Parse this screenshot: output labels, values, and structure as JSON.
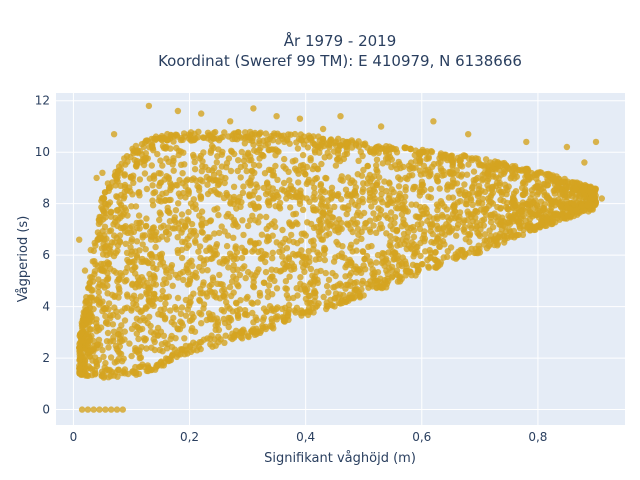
{
  "chart_data": {
    "type": "scatter",
    "title_lines": [
      "År 1979 - 2019",
      "Koordinat (Sweref 99 TM): E 410979, N 6138666"
    ],
    "xlabel": "Signifikant våghöjd (m)",
    "ylabel": "Vågperiod (s)",
    "xlim": [
      -0.03,
      0.95
    ],
    "ylim": [
      -0.6,
      12.3
    ],
    "xticks": [
      0,
      0.2,
      0.4,
      0.6,
      0.8
    ],
    "xtick_labels": [
      "0",
      "0,2",
      "0,4",
      "0,6",
      "0,8"
    ],
    "yticks": [
      0,
      2,
      4,
      6,
      8,
      10,
      12
    ],
    "ytick_labels": [
      "0",
      "2",
      "4",
      "6",
      "8",
      "10",
      "12"
    ],
    "grid": true,
    "colors": {
      "marker": "#D4A421",
      "background": "#E5ECF6",
      "grid": "#ffffff"
    },
    "envelope": {
      "x": [
        0.01,
        0.03,
        0.05,
        0.1,
        0.15,
        0.2,
        0.3,
        0.4,
        0.5,
        0.6,
        0.7,
        0.8,
        0.9
      ],
      "y_min": [
        1.3,
        1.3,
        1.2,
        1.3,
        1.6,
        2.2,
        2.8,
        3.6,
        4.4,
        5.3,
        6.1,
        7.0,
        7.8
      ],
      "y_max": [
        2.8,
        5.5,
        8.5,
        10.2,
        10.7,
        10.8,
        10.8,
        10.7,
        10.4,
        10.1,
        9.8,
        9.3,
        8.6
      ]
    },
    "outliers": [
      {
        "x": 0.13,
        "y": 11.8
      },
      {
        "x": 0.18,
        "y": 11.6
      },
      {
        "x": 0.22,
        "y": 11.5
      },
      {
        "x": 0.31,
        "y": 11.7
      },
      {
        "x": 0.35,
        "y": 11.4
      },
      {
        "x": 0.39,
        "y": 11.3
      },
      {
        "x": 0.27,
        "y": 11.2
      },
      {
        "x": 0.46,
        "y": 11.4
      },
      {
        "x": 0.53,
        "y": 11.0
      },
      {
        "x": 0.62,
        "y": 11.2
      },
      {
        "x": 0.68,
        "y": 10.7
      },
      {
        "x": 0.78,
        "y": 10.4
      },
      {
        "x": 0.85,
        "y": 10.2
      },
      {
        "x": 0.9,
        "y": 10.4
      },
      {
        "x": 0.88,
        "y": 9.6
      },
      {
        "x": 0.91,
        "y": 8.2
      },
      {
        "x": 0.83,
        "y": 8.9
      },
      {
        "x": 0.07,
        "y": 10.7
      },
      {
        "x": 0.05,
        "y": 9.2
      },
      {
        "x": 0.04,
        "y": 9.0
      },
      {
        "x": 0.01,
        "y": 6.6
      },
      {
        "x": 0.02,
        "y": 5.4
      },
      {
        "x": 0.03,
        "y": 6.2
      },
      {
        "x": 0.43,
        "y": 10.9
      }
    ],
    "zero_points": [
      {
        "x": 0.015,
        "y": 0
      },
      {
        "x": 0.025,
        "y": 0
      },
      {
        "x": 0.035,
        "y": 0
      },
      {
        "x": 0.045,
        "y": 0
      },
      {
        "x": 0.055,
        "y": 0
      },
      {
        "x": 0.065,
        "y": 0
      },
      {
        "x": 0.075,
        "y": 0
      },
      {
        "x": 0.085,
        "y": 0
      }
    ]
  }
}
